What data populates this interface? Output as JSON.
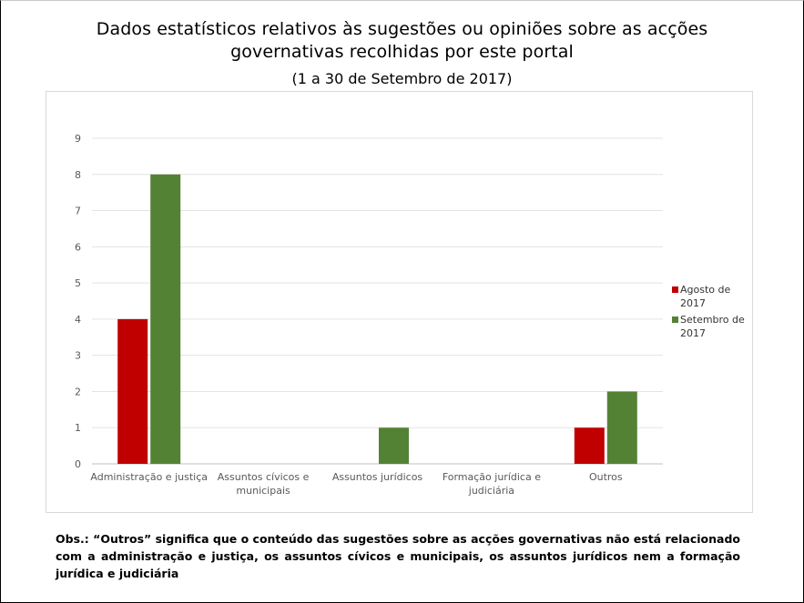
{
  "title_lines": [
    "Dados estatísticos relativos às sugestões ou opiniões sobre as acções",
    "governativas recolhidas por este portal"
  ],
  "subtitle": "(1 a 30 de Setembro de 2017)",
  "chart_data": {
    "type": "bar",
    "categories": [
      [
        "Administração e justiça"
      ],
      [
        "Assuntos cívicos e",
        "municipais"
      ],
      [
        "Assuntos jurídicos"
      ],
      [
        "Formação jurídica e",
        "judiciária"
      ],
      [
        "Outros"
      ]
    ],
    "series": [
      {
        "name": [
          "Agosto de",
          "2017"
        ],
        "color": "#c00000",
        "values": [
          4,
          0,
          0,
          0,
          1
        ]
      },
      {
        "name": [
          "Setembro de",
          "2017"
        ],
        "color": "#548235",
        "values": [
          8,
          0,
          1,
          0,
          2
        ]
      }
    ],
    "ylim": [
      0,
      9
    ],
    "yticks": [
      "0",
      "1",
      "2",
      "3",
      "4",
      "5",
      "6",
      "7",
      "8",
      "9"
    ],
    "grid": true,
    "legend_position": "right"
  },
  "note": "Obs.: “Outros” significa que o conteúdo das sugestões sobre as acções governativas não está relacionado com a administração e justiça, os assuntos cívicos e municipais, os assuntos jurídicos nem a formação jurídica e judiciária"
}
